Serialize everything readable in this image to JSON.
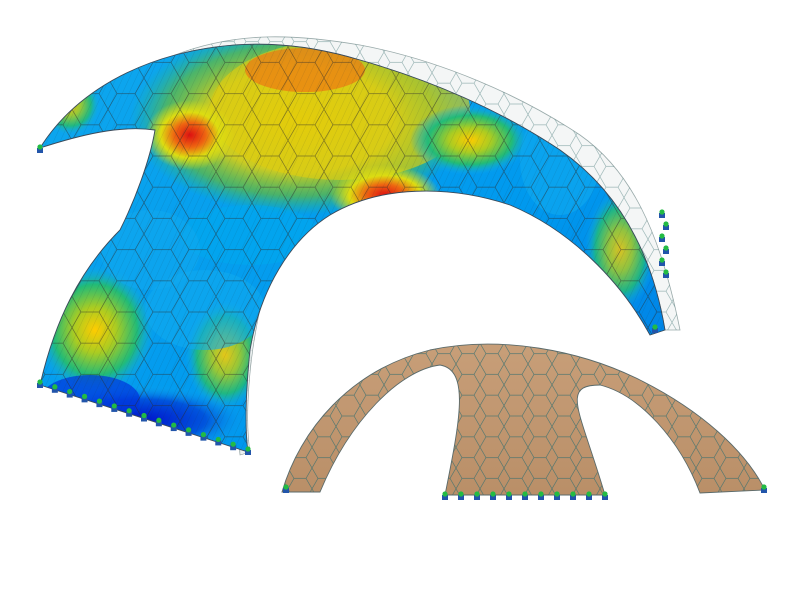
{
  "scene": {
    "background": "#ffffff",
    "shell_colormap": [
      "#0011cc",
      "#0077ee",
      "#11aaee",
      "#22bb77",
      "#88cc22",
      "#dddd11",
      "#ffcc00",
      "#ee6611",
      "#dd1111"
    ],
    "gridshell_wood_color": "#c49a72",
    "gridshell_panel_edge_color": "#7f8a8a",
    "support_node_color": "#22bb44",
    "support_anchor_color": "#2255aa",
    "mesh_line_color": "#1a1a1a"
  }
}
